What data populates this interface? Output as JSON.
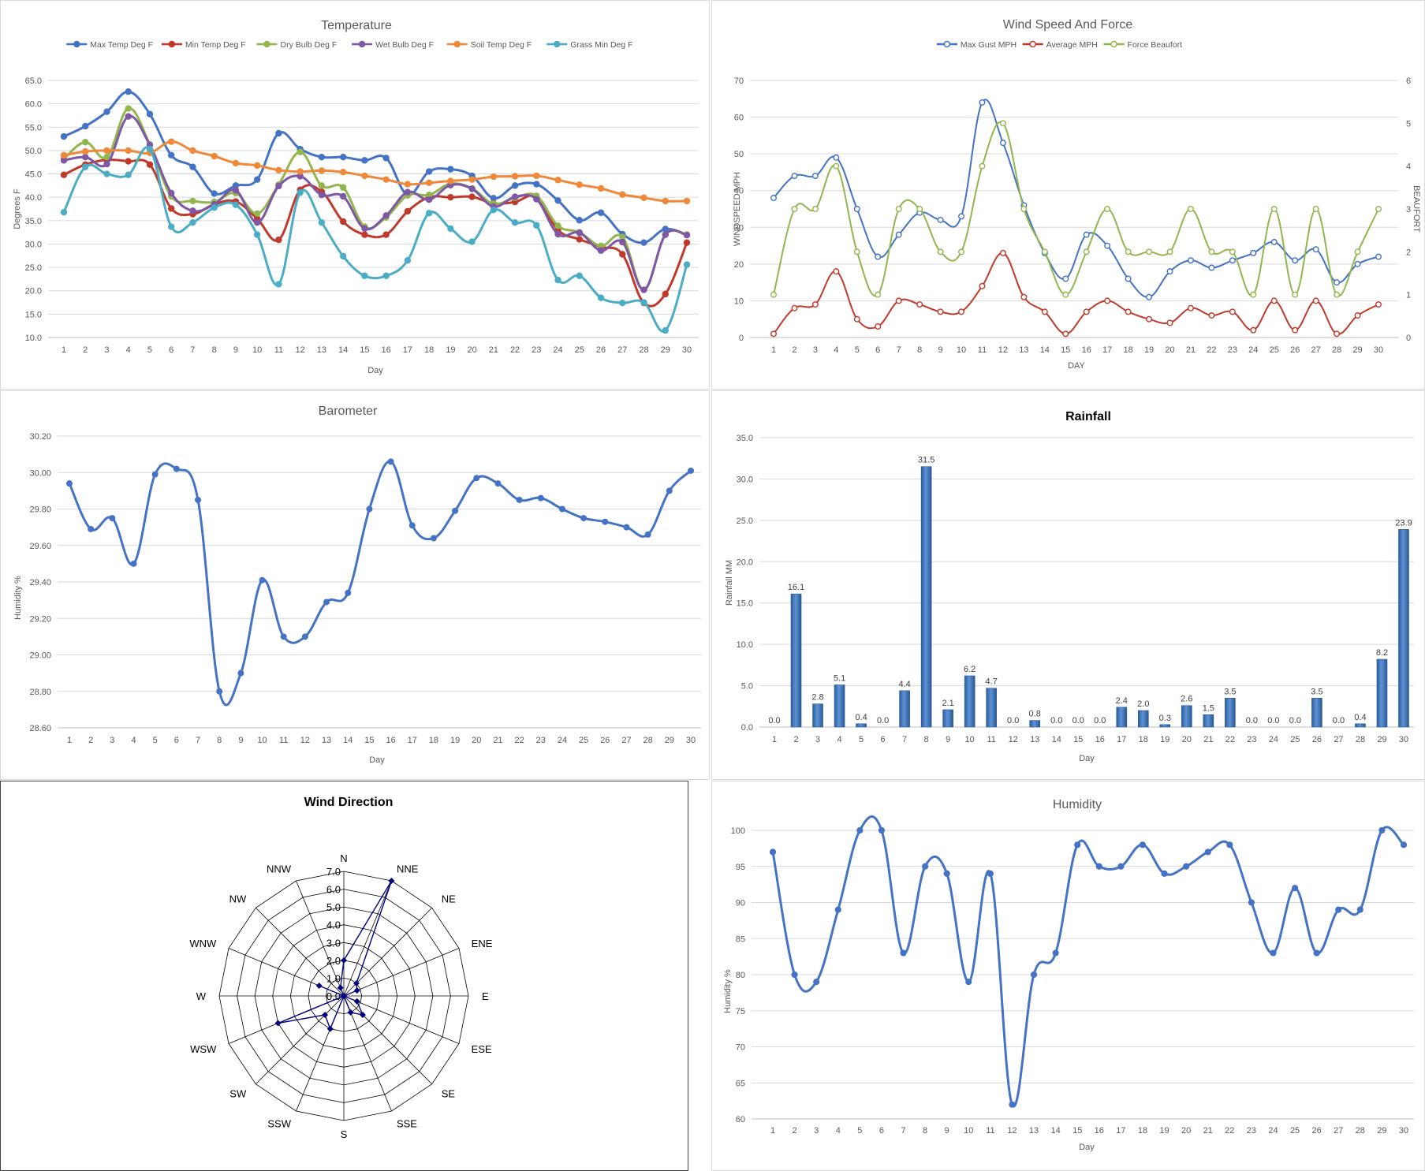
{
  "charts": {
    "temperature": {
      "type": "line",
      "title": "Temperature",
      "xlabel": "Day",
      "ylabel": "Degrees F",
      "ylim": [
        10,
        65
      ],
      "ystep": 5,
      "ytick_decimals": 1,
      "x": [
        1,
        2,
        3,
        4,
        5,
        6,
        7,
        8,
        9,
        10,
        11,
        12,
        13,
        14,
        15,
        16,
        17,
        18,
        19,
        20,
        21,
        22,
        23,
        24,
        25,
        26,
        27,
        28,
        29,
        30
      ],
      "legend_position": "top",
      "series": [
        {
          "name": "Max Temp Deg F",
          "color": "#4472c4",
          "values": [
            53.0,
            55.2,
            58.3,
            62.6,
            57.8,
            49.0,
            46.5,
            40.8,
            42.5,
            43.8,
            53.7,
            50.3,
            48.6,
            48.6,
            47.9,
            48.4,
            40.5,
            45.5,
            46.0,
            44.6,
            39.8,
            42.5,
            42.8,
            39.3,
            35.1,
            36.7,
            32.1,
            30.3,
            33.2,
            32.0
          ]
        },
        {
          "name": "Min Temp Deg F",
          "color": "#c0392b",
          "values": [
            44.8,
            47.0,
            48.0,
            47.7,
            47.0,
            37.6,
            36.4,
            38.5,
            39.1,
            35.4,
            30.9,
            41.6,
            41.2,
            34.8,
            32.0,
            32.0,
            37.0,
            40.0,
            40.0,
            40.1,
            38.7,
            39.0,
            40.1,
            33.0,
            31.0,
            29.4,
            27.8,
            17.4,
            19.3,
            30.3
          ]
        },
        {
          "name": "Dry Bulb Deg F",
          "color": "#92b64e",
          "values": [
            48.2,
            51.8,
            48.6,
            59.0,
            51.3,
            40.2,
            39.2,
            39.0,
            40.9,
            36.5,
            42.7,
            49.7,
            42.5,
            42.1,
            33.7,
            35.7,
            40.4,
            40.5,
            42.9,
            41.9,
            38.6,
            39.9,
            40.3,
            33.9,
            32.5,
            29.6,
            31.5,
            20.2,
            32.0,
            32.0
          ]
        },
        {
          "name": "Wet Bulb Deg F",
          "color": "#7e57a5",
          "values": [
            47.9,
            48.6,
            47.1,
            57.3,
            51.2,
            40.9,
            37.1,
            38.5,
            41.5,
            34.6,
            42.4,
            44.5,
            40.5,
            40.2,
            33.3,
            36.1,
            41.1,
            39.5,
            42.6,
            41.8,
            38.0,
            40.1,
            39.6,
            32.1,
            32.4,
            28.6,
            30.4,
            20.2,
            32.0,
            31.9
          ]
        },
        {
          "name": "Soil Temp Deg F",
          "color": "#f0883a",
          "values": [
            49.0,
            49.8,
            50.0,
            50.0,
            49.5,
            51.9,
            50.0,
            48.8,
            47.3,
            46.8,
            45.8,
            45.5,
            45.7,
            45.4,
            44.6,
            43.8,
            42.8,
            43.1,
            43.5,
            43.8,
            44.4,
            44.5,
            44.6,
            43.7,
            42.7,
            41.9,
            40.6,
            39.9,
            39.2,
            39.2
          ]
        },
        {
          "name": "Grass Min Deg F",
          "color": "#4bacc6",
          "values": [
            36.8,
            46.5,
            45.0,
            44.8,
            50.3,
            33.7,
            34.6,
            37.8,
            38.4,
            32.0,
            21.4,
            41.0,
            34.6,
            27.4,
            23.2,
            23.2,
            26.5,
            36.6,
            33.3,
            30.5,
            37.3,
            34.6,
            34.0,
            22.3,
            23.2,
            18.5,
            17.4,
            17.5,
            11.5,
            25.6
          ]
        }
      ]
    },
    "wind_speed": {
      "type": "line",
      "title": "Wind Speed And Force",
      "xlabel": "DAY",
      "ylabel": "WINDSPEED MPH",
      "ylabel_right": "BEAUFORT",
      "ylim": [
        0,
        70
      ],
      "ystep": 10,
      "ylim_right": [
        0,
        6
      ],
      "ystep_right": 1,
      "x": [
        1,
        2,
        3,
        4,
        5,
        6,
        7,
        8,
        9,
        10,
        11,
        12,
        13,
        14,
        15,
        16,
        17,
        18,
        19,
        20,
        21,
        22,
        23,
        24,
        25,
        26,
        27,
        28,
        29,
        30
      ],
      "legend_position": "top",
      "series": [
        {
          "name": "Max Gust MPH",
          "color": "#4472c4",
          "axis": "left",
          "values": [
            38,
            44,
            44,
            49,
            35,
            22,
            28,
            34,
            32,
            33,
            64,
            53,
            36,
            23,
            16,
            28,
            25,
            16,
            11,
            18,
            21,
            19,
            21,
            23,
            26,
            21,
            24,
            15,
            20,
            22
          ]
        },
        {
          "name": "Average MPH",
          "color": "#c0392b",
          "axis": "left",
          "values": [
            1,
            8,
            9,
            18,
            5,
            3,
            10,
            9,
            7,
            7,
            14,
            23,
            11,
            7,
            1,
            7,
            10,
            7,
            5,
            4,
            8,
            6,
            7,
            2,
            10,
            2,
            10,
            1,
            6,
            9
          ]
        },
        {
          "name": "Force Beaufort",
          "color": "#92b64e",
          "axis": "right",
          "values": [
            1,
            3,
            3,
            4,
            2,
            1,
            3,
            3,
            2,
            2,
            4,
            5,
            3,
            2,
            1,
            2,
            3,
            2,
            2,
            2,
            3,
            2,
            2,
            1,
            3,
            1,
            3,
            1,
            2,
            3
          ]
        }
      ]
    },
    "barometer": {
      "type": "line",
      "title": "Barometer",
      "xlabel": "Day",
      "ylabel": "Humidity %",
      "ylim": [
        28.6,
        30.2
      ],
      "ystep": 0.2,
      "ytick_decimals": 2,
      "x": [
        1,
        2,
        3,
        4,
        5,
        6,
        7,
        8,
        9,
        10,
        11,
        12,
        13,
        14,
        15,
        16,
        17,
        18,
        19,
        20,
        21,
        22,
        23,
        24,
        25,
        26,
        27,
        28,
        29,
        30
      ],
      "series": [
        {
          "name": "",
          "color": "#4472c4",
          "values": [
            29.94,
            29.69,
            29.75,
            29.5,
            29.99,
            30.02,
            29.85,
            28.8,
            28.9,
            29.41,
            29.1,
            29.1,
            29.29,
            29.34,
            29.8,
            30.06,
            29.71,
            29.64,
            29.79,
            29.97,
            29.94,
            29.85,
            29.86,
            29.8,
            29.75,
            29.73,
            29.7,
            29.66,
            29.9,
            30.01
          ]
        }
      ]
    },
    "rainfall": {
      "type": "bar",
      "title": "Rainfall",
      "xlabel": "Day",
      "ylabel": "Rainfall MM",
      "ylim": [
        0,
        35
      ],
      "ystep": 5,
      "ytick_decimals": 1,
      "categories": [
        1,
        2,
        3,
        4,
        5,
        6,
        7,
        8,
        9,
        10,
        11,
        12,
        13,
        14,
        15,
        16,
        17,
        18,
        19,
        20,
        21,
        22,
        23,
        24,
        25,
        26,
        27,
        28,
        29,
        30
      ],
      "values": [
        0.0,
        16.1,
        2.8,
        5.1,
        0.4,
        0.0,
        4.4,
        31.5,
        2.1,
        6.2,
        4.7,
        0.0,
        0.8,
        0.0,
        0.0,
        0.0,
        2.4,
        2.0,
        0.3,
        2.6,
        1.5,
        3.5,
        0.0,
        0.0,
        0.0,
        3.5,
        0.0,
        0.4,
        8.2,
        23.9
      ],
      "color": "#4a7ebb",
      "data_labels": true
    },
    "wind_direction": {
      "type": "radar",
      "title": "Wind Direction",
      "categories": [
        "N",
        "NNE",
        "NE",
        "ENE",
        "E",
        "ESE",
        "SE",
        "SSE",
        "S",
        "SSW",
        "SW",
        "WSW",
        "W",
        "WNW",
        "NW",
        "NNW"
      ],
      "values": [
        2.0,
        7.0,
        1.0,
        0.8,
        0.0,
        0.8,
        1.5,
        1.0,
        0.0,
        2.0,
        1.5,
        4.0,
        0.0,
        1.5,
        0.0,
        0.5
      ],
      "rlim": [
        0,
        7
      ],
      "rstep": 1,
      "color": "#00007f"
    },
    "humidity": {
      "type": "line",
      "title": "Humidity",
      "xlabel": "Day",
      "ylabel": "Humidity %",
      "ylim": [
        60,
        100
      ],
      "ystep": 5,
      "ytick_decimals": 0,
      "x": [
        1,
        2,
        3,
        4,
        5,
        6,
        7,
        8,
        9,
        10,
        11,
        12,
        13,
        14,
        15,
        16,
        17,
        18,
        19,
        20,
        21,
        22,
        23,
        24,
        25,
        26,
        27,
        28,
        29,
        30
      ],
      "series": [
        {
          "name": "",
          "color": "#4472c4",
          "values": [
            97,
            80,
            79,
            89,
            100,
            100,
            83,
            95,
            94,
            79,
            94,
            62,
            80,
            83,
            98,
            95,
            95,
            98,
            94,
            95,
            97,
            98,
            90,
            83,
            92,
            83,
            89,
            89,
            100,
            98
          ]
        }
      ]
    }
  }
}
